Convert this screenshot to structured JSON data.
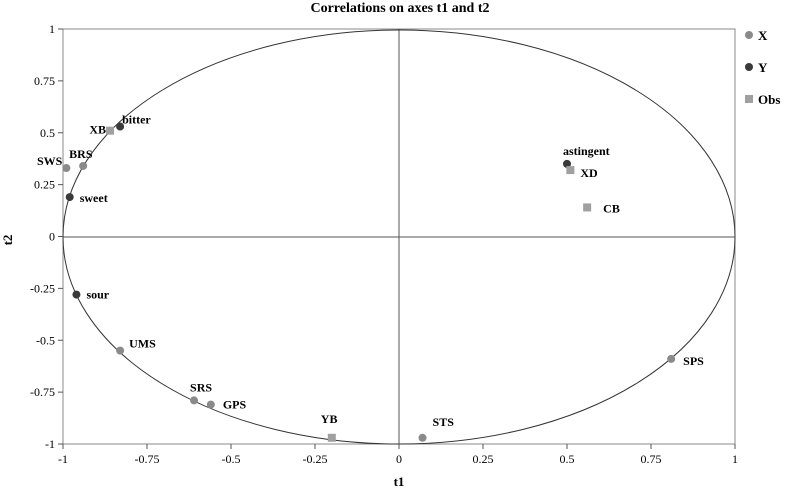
{
  "chart_data": {
    "type": "scatter",
    "title": "Correlations on axes t1 and t2",
    "xlabel": "t1",
    "ylabel": "t2",
    "xlim": [
      -1,
      1
    ],
    "ylim": [
      -1,
      1
    ],
    "x_ticks": [
      "-1",
      "-0.75",
      "-0.5",
      "-0.25",
      "0",
      "0.25",
      "0.5",
      "0.75",
      "1"
    ],
    "y_ticks": [
      "1",
      "0.75",
      "0.5",
      "0.25",
      "0",
      "-0.25",
      "-0.5",
      "-0.75",
      "-1"
    ],
    "unit_circle": true,
    "zero_lines": true,
    "legend_position": "right",
    "series": [
      {
        "name": "X",
        "color": "#8a8a8a",
        "marker": "circle",
        "points": [
          {
            "label": "BRS",
            "x": -0.94,
            "y": 0.34
          },
          {
            "label": "SWS",
            "x": -0.99,
            "y": 0.33
          },
          {
            "label": "UMS",
            "x": -0.83,
            "y": -0.55
          },
          {
            "label": "SRS",
            "x": -0.61,
            "y": -0.79
          },
          {
            "label": "GPS",
            "x": -0.56,
            "y": -0.81
          },
          {
            "label": "STS",
            "x": 0.07,
            "y": -0.97
          },
          {
            "label": "SPS",
            "x": 0.81,
            "y": -0.59
          }
        ]
      },
      {
        "name": "Y",
        "color": "#3a3a3a",
        "marker": "circle",
        "points": [
          {
            "label": "bitter",
            "x": -0.83,
            "y": 0.53
          },
          {
            "label": "sweet",
            "x": -0.98,
            "y": 0.19
          },
          {
            "label": "sour",
            "x": -0.96,
            "y": -0.28
          },
          {
            "label": "astingent",
            "x": 0.5,
            "y": 0.35
          }
        ]
      },
      {
        "name": "Obs",
        "color": "#a0a0a0",
        "marker": "square",
        "points": [
          {
            "label": "XB",
            "x": -0.86,
            "y": 0.51
          },
          {
            "label": "XD",
            "x": 0.51,
            "y": 0.32
          },
          {
            "label": "CB",
            "x": 0.56,
            "y": 0.14
          },
          {
            "label": "YB",
            "x": -0.2,
            "y": -0.97
          }
        ]
      }
    ]
  }
}
